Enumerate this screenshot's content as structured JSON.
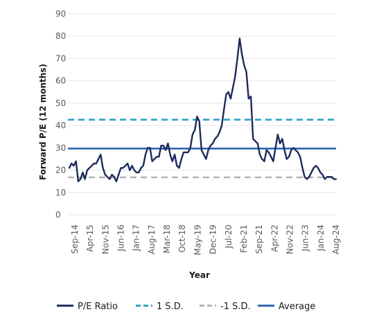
{
  "chart_data": {
    "type": "line",
    "xlabel": "Year",
    "ylabel": "Forward P/E (12 months)",
    "ylim": [
      0,
      90
    ],
    "yticks": [
      0,
      10,
      20,
      30,
      40,
      50,
      60,
      70,
      80,
      90
    ],
    "grid": "horizontal",
    "legend_position": "bottom",
    "x_tick_labels": [
      "Sep-14",
      "Apr-15",
      "Nov-15",
      "Jun-16",
      "Jan-17",
      "Aug-17",
      "Mar-18",
      "Oct-18",
      "May-19",
      "Dec-19",
      "Jul-20",
      "Feb-21",
      "Sep-21",
      "Apr-22",
      "Nov-22",
      "Jun-23",
      "Jan-24",
      "Aug-24"
    ],
    "x_range": [
      "Sep-14",
      "Aug-24"
    ],
    "series": [
      {
        "name": "P/E Ratio",
        "color": "#1b2a5c",
        "style": "solid",
        "x_months": [
          0,
          1,
          2,
          3,
          4,
          5,
          6,
          7,
          8,
          9,
          10,
          11,
          12,
          13,
          14,
          15,
          16,
          17,
          18,
          19,
          20,
          21,
          22,
          23,
          24,
          25,
          26,
          27,
          28,
          29,
          30,
          31,
          32,
          33,
          34,
          35,
          36,
          37,
          38,
          39,
          40,
          41,
          42,
          43,
          44,
          45,
          46,
          47,
          48,
          49,
          50,
          51,
          52,
          53,
          54,
          55,
          56,
          57,
          58,
          59,
          60,
          61,
          62,
          63,
          64,
          65,
          66,
          67,
          68,
          69,
          70,
          71,
          72,
          73,
          74,
          75,
          76,
          77,
          78,
          79,
          80,
          81,
          82,
          83,
          84,
          85,
          86,
          87,
          88,
          89,
          90,
          91,
          92,
          93,
          94,
          95,
          96,
          97,
          98,
          99,
          100,
          101,
          102,
          103,
          104,
          105,
          106,
          107,
          108,
          109,
          110,
          111,
          112,
          113,
          114,
          115,
          116,
          117,
          118,
          119
        ],
        "x_labels_note": "",
        "values": [
          21,
          23,
          22,
          24,
          15,
          16,
          19,
          16,
          20,
          21,
          22,
          23,
          23,
          25,
          27,
          21,
          18,
          17,
          16,
          18,
          17,
          15,
          18,
          21,
          21,
          22,
          23,
          20,
          22,
          20,
          19,
          19,
          21,
          22,
          27,
          30,
          30,
          24,
          25,
          26,
          26,
          31,
          31,
          29,
          32,
          27,
          24,
          27,
          22,
          21,
          25,
          28,
          28,
          28,
          30,
          36,
          38,
          44,
          42,
          29,
          27,
          25,
          29,
          31,
          32,
          34,
          35,
          37,
          40,
          47,
          54,
          55,
          52,
          57,
          62,
          70,
          79,
          72,
          67,
          64,
          52,
          53,
          34,
          33,
          32,
          27,
          25,
          24,
          29,
          28,
          26,
          24,
          30,
          36,
          32,
          34,
          29,
          25,
          26,
          29,
          30,
          29,
          28,
          26,
          21,
          17,
          16,
          17,
          19,
          21,
          22,
          21,
          19,
          18,
          16,
          17,
          17,
          17,
          16,
          16
        ]
      },
      {
        "name": "1 S.D.",
        "color": "#2aa3c7",
        "style": "dashed",
        "value": 42.6
      },
      {
        "name": "-1 S.D.",
        "color": "#b3b3b3",
        "style": "dashed",
        "value": 16.8
      },
      {
        "name": "Average",
        "color": "#2a66b0",
        "style": "solid",
        "value": 29.7
      }
    ]
  }
}
